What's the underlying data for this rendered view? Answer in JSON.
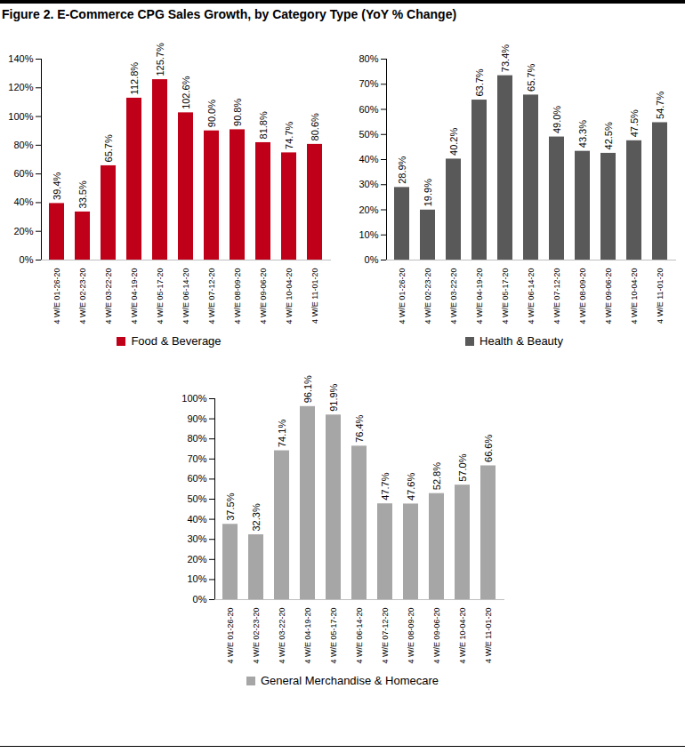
{
  "title": "Figure 2. E-Commerce CPG Sales Growth, by Category Type (YoY % Change)",
  "chart_data": [
    {
      "type": "bar",
      "categories": [
        "4 W/E 01-26-20",
        "4 W/E 02-23-20",
        "4 W/E 03-22-20",
        "4 W/E 04-19-20",
        "4 W/E 05-17-20",
        "4 W/E 06-14-20",
        "4 W/E 07-12-20",
        "4 W/E 08-09-20",
        "4 W/E 09-06-20",
        "4 W/E 10-04-20",
        "4 W/E 11-01-20"
      ],
      "series": [
        {
          "name": "Food & Beverage",
          "color": "#c00018",
          "values": [
            39.4,
            33.5,
            65.7,
            112.8,
            125.7,
            102.6,
            90.0,
            90.8,
            81.8,
            74.7,
            80.6
          ],
          "value_labels": [
            "39.4%",
            "33.5%",
            "65.7%",
            "112.8%",
            "125.7%",
            "102.6%",
            "90.0%",
            "90.8%",
            "81.8%",
            "74.7%",
            "80.6%"
          ]
        }
      ],
      "ylim": [
        0,
        140
      ],
      "yticks": [
        {
          "value": 0,
          "label": "0%"
        },
        {
          "value": 20,
          "label": "20%"
        },
        {
          "value": 40,
          "label": "40%"
        },
        {
          "value": 60,
          "label": "60%"
        },
        {
          "value": 80,
          "label": "80%"
        },
        {
          "value": 100,
          "label": "100%"
        },
        {
          "value": 120,
          "label": "120%"
        },
        {
          "value": 140,
          "label": "140%"
        }
      ],
      "grid": false,
      "legend": "bottom",
      "data_labels": true
    },
    {
      "type": "bar",
      "categories": [
        "4 W/E 01-26-20",
        "4 W/E 02-23-20",
        "4 W/E 03-22-20",
        "4 W/E 04-19-20",
        "4 W/E 05-17-20",
        "4 W/E 06-14-20",
        "4 W/E 07-12-20",
        "4 W/E 08-09-20",
        "4 W/E 09-06-20",
        "4 W/E 10-04-20",
        "4 W/E 11-01-20"
      ],
      "series": [
        {
          "name": "Health & Beauty",
          "color": "#595959",
          "values": [
            28.9,
            19.9,
            40.2,
            63.7,
            73.4,
            65.7,
            49.0,
            43.3,
            42.5,
            47.5,
            54.7
          ],
          "value_labels": [
            "28.9%",
            "19.9%",
            "40.2%",
            "63.7%",
            "73.4%",
            "65.7%",
            "49.0%",
            "43.3%",
            "42.5%",
            "47.5%",
            "54.7%"
          ]
        }
      ],
      "ylim": [
        0,
        80
      ],
      "yticks": [
        {
          "value": 0,
          "label": "0%"
        },
        {
          "value": 10,
          "label": "10%"
        },
        {
          "value": 20,
          "label": "20%"
        },
        {
          "value": 30,
          "label": "30%"
        },
        {
          "value": 40,
          "label": "40%"
        },
        {
          "value": 50,
          "label": "50%"
        },
        {
          "value": 60,
          "label": "60%"
        },
        {
          "value": 70,
          "label": "70%"
        },
        {
          "value": 80,
          "label": "80%"
        }
      ],
      "grid": false,
      "legend": "bottom",
      "data_labels": true
    },
    {
      "type": "bar",
      "categories": [
        "4 W/E 01-26-20",
        "4 W/E 02-23-20",
        "4 W/E 03-22-20",
        "4 W/E 04-19-20",
        "4 W/E 05-17-20",
        "4 W/E 06-14-20",
        "4 W/E 07-12-20",
        "4 W/E 08-09-20",
        "4 W/E 09-06-20",
        "4 W/E 10-04-20",
        "4 W/E 11-01-20"
      ],
      "series": [
        {
          "name": "General Merchandise & Homecare",
          "color": "#a6a6a6",
          "values": [
            37.5,
            32.3,
            74.1,
            96.1,
            91.9,
            76.4,
            47.7,
            47.6,
            52.8,
            57.0,
            66.6
          ],
          "value_labels": [
            "37.5%",
            "32.3%",
            "74.1%",
            "96.1%",
            "91.9%",
            "76.4%",
            "47.7%",
            "47.6%",
            "52.8%",
            "57.0%",
            "66.6%"
          ]
        }
      ],
      "ylim": [
        0,
        100
      ],
      "yticks": [
        {
          "value": 0,
          "label": "0%"
        },
        {
          "value": 10,
          "label": "10%"
        },
        {
          "value": 20,
          "label": "20%"
        },
        {
          "value": 30,
          "label": "30%"
        },
        {
          "value": 40,
          "label": "40%"
        },
        {
          "value": 50,
          "label": "50%"
        },
        {
          "value": 60,
          "label": "60%"
        },
        {
          "value": 70,
          "label": "70%"
        },
        {
          "value": 80,
          "label": "80%"
        },
        {
          "value": 90,
          "label": "90%"
        },
        {
          "value": 100,
          "label": "100%"
        }
      ],
      "grid": false,
      "legend": "bottom",
      "data_labels": true
    }
  ]
}
